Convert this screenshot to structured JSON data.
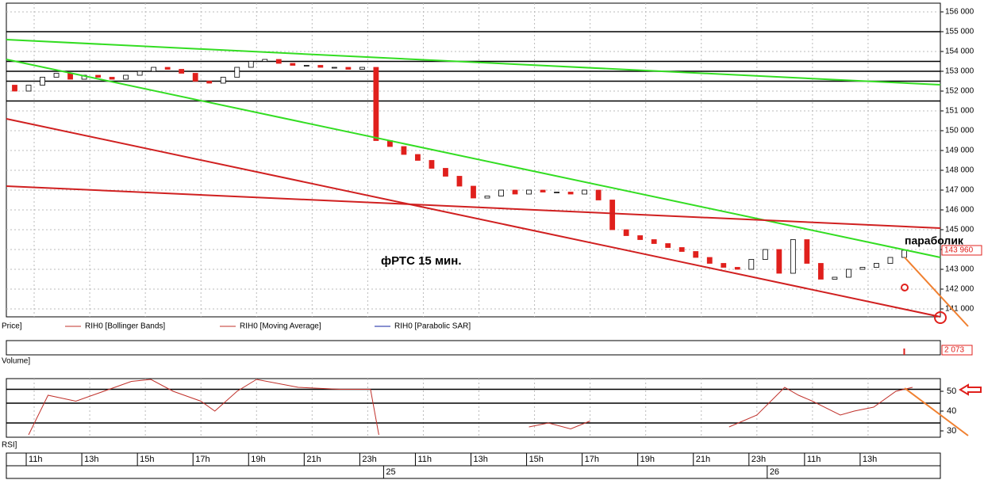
{
  "chart_data": [
    {
      "type": "candlestick",
      "legend": [
        "Price]",
        "RIH0 [Bollinger Bands]",
        "RIH0 [Moving Average]",
        "RIH0 [Parabolic SAR]"
      ],
      "annotations": [
        "фРТС   15 мин.",
        "параболик"
      ],
      "last_price_label": "143 960",
      "x": [
        0.3,
        0.8,
        1.3,
        1.8,
        2.3,
        2.8,
        3.3,
        3.8,
        4.3,
        4.8,
        5.3,
        5.8,
        6.3,
        6.8,
        7.3,
        7.8,
        8.3,
        8.8,
        9.3,
        9.8,
        10.3,
        10.8,
        11.3,
        11.8,
        12.3,
        12.8,
        13.3,
        13.8,
        14.3,
        14.8,
        15.3,
        15.8,
        16.3,
        16.8,
        17.3,
        17.8,
        18.3,
        18.8,
        19.3,
        19.8,
        20.3,
        20.8,
        21.3,
        21.8,
        22.3,
        22.8,
        23.3,
        23.8,
        24.3,
        24.8,
        25.3,
        25.8,
        26.3,
        26.8,
        27.3,
        27.8,
        28.3,
        28.8,
        29.3,
        29.8,
        30.3,
        30.8,
        31.3,
        31.8,
        32.3
      ],
      "open": [
        152300,
        152000,
        152300,
        152700,
        152900,
        152600,
        152800,
        152700,
        152600,
        152800,
        153000,
        153200,
        153100,
        152900,
        152500,
        152400,
        152700,
        153200,
        153500,
        153600,
        153400,
        153300,
        153300,
        153200,
        153200,
        153100,
        153200,
        149500,
        149200,
        148800,
        148500,
        148100,
        147700,
        147200,
        146600,
        146700,
        147000,
        146800,
        147000,
        146900,
        146900,
        146800,
        147000,
        146500,
        145000,
        144700,
        144500,
        144300,
        144100,
        143900,
        143600,
        143300,
        143100,
        143000,
        143500,
        144000,
        142800,
        144500,
        143300,
        142500,
        142600,
        143000,
        143100,
        143300,
        143600
      ],
      "close": [
        152000,
        152300,
        152700,
        152900,
        152600,
        152800,
        152700,
        152600,
        152800,
        153000,
        153200,
        153100,
        152900,
        152500,
        152400,
        152700,
        153200,
        153500,
        153600,
        153400,
        153300,
        153300,
        153200,
        153200,
        153100,
        153200,
        149500,
        149200,
        148800,
        148500,
        148100,
        147700,
        147200,
        146600,
        146700,
        147000,
        146800,
        147000,
        146900,
        146900,
        146800,
        147000,
        146500,
        145000,
        144700,
        144500,
        144300,
        144100,
        143900,
        143600,
        143300,
        143100,
        143000,
        143500,
        144000,
        142800,
        144500,
        143300,
        142500,
        142600,
        143000,
        143100,
        143300,
        143600,
        143960
      ],
      "levels": [
        155000,
        153500,
        153000,
        152500,
        151500
      ],
      "up_color": "#ffffff",
      "down_color": "#e0201c",
      "xlim": [
        0,
        33.6
      ],
      "ylim": [
        140600,
        156440
      ],
      "yticks": [
        {
          "value": 141000,
          "label": "141 000"
        },
        {
          "value": 142000,
          "label": "142 000"
        },
        {
          "value": 143000,
          "label": "143 000"
        },
        {
          "value": 144000,
          "label": "144 000"
        },
        {
          "value": 145000,
          "label": "145 000"
        },
        {
          "value": 146000,
          "label": "146 000"
        },
        {
          "value": 147000,
          "label": "147 000"
        },
        {
          "value": 148000,
          "label": "148 000"
        },
        {
          "value": 149000,
          "label": "149 000"
        },
        {
          "value": 150000,
          "label": "150 000"
        },
        {
          "value": 151000,
          "label": "151 000"
        },
        {
          "value": 152000,
          "label": "152 000"
        },
        {
          "value": 153000,
          "label": "153 000"
        },
        {
          "value": 154000,
          "label": "154 000"
        },
        {
          "value": 155000,
          "label": "155 000"
        },
        {
          "value": 156000,
          "label": "156 000"
        }
      ],
      "xticks": [
        {
          "value": 1,
          "label": "11h"
        },
        {
          "value": 3,
          "label": "13h"
        },
        {
          "value": 5,
          "label": "15h"
        },
        {
          "value": 7,
          "label": "17h"
        },
        {
          "value": 9,
          "label": "19h"
        },
        {
          "value": 11,
          "label": "21h"
        },
        {
          "value": 13,
          "label": "23h"
        },
        {
          "value": 15,
          "label": "11h"
        },
        {
          "value": 17,
          "label": "13h"
        },
        {
          "value": 19,
          "label": "15h"
        },
        {
          "value": 21,
          "label": "17h"
        },
        {
          "value": 23,
          "label": "19h"
        },
        {
          "value": 25,
          "label": "21h"
        },
        {
          "value": 27,
          "label": "23h"
        },
        {
          "value": 29,
          "label": "11h"
        },
        {
          "value": 31,
          "label": "13h"
        }
      ],
      "date_ticks": [
        {
          "value": 13.8,
          "label": "25"
        },
        {
          "value": 27.6,
          "label": "26"
        }
      ],
      "grid": true
    },
    {
      "type": "bar",
      "legend": [
        "Volume]"
      ],
      "x": [
        32.3
      ],
      "values": [
        2073
      ],
      "value_labels": [
        "2 073"
      ],
      "color": "#e0201c"
    },
    {
      "type": "line",
      "legend": [
        "RSI]"
      ],
      "x": [
        0.8,
        1.5,
        2.5,
        3.5,
        4.5,
        5.2,
        6,
        7,
        7.5,
        8.3,
        9,
        10.5,
        12,
        13.1,
        13.4,
        15,
        18.8,
        19.5,
        20.3,
        21,
        22,
        26,
        27,
        28,
        28.5,
        29,
        30,
        30.5,
        31.2,
        32,
        32.6
      ],
      "values": [
        28,
        48,
        45,
        50,
        55,
        56,
        50,
        45,
        40,
        50,
        56,
        52,
        51,
        51,
        28,
        null,
        32,
        34,
        31,
        35,
        null,
        32,
        38,
        52,
        48,
        45,
        38,
        40,
        42,
        50,
        52
      ],
      "color": "#c0302a",
      "levels": [
        51,
        44,
        34
      ],
      "ylim": [
        26.8,
        56.4
      ],
      "yticks": [
        30,
        40,
        50
      ]
    }
  ]
}
